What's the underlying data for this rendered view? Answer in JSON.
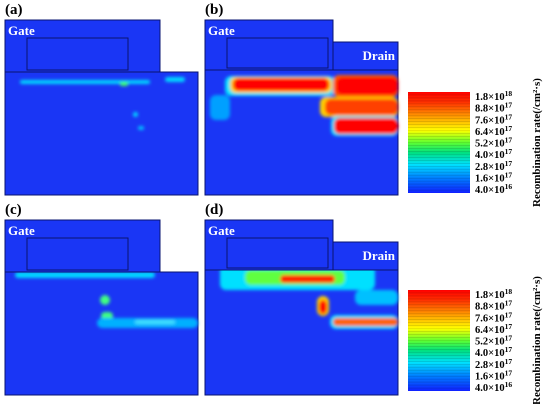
{
  "panels": [
    {
      "label": "(a)",
      "gate": "Gate"
    },
    {
      "label": "(b)",
      "gate": "Gate",
      "drain": "Drain"
    },
    {
      "label": "(c)",
      "gate": "Gate"
    },
    {
      "label": "(d)",
      "gate": "Gate",
      "drain": "Drain"
    }
  ],
  "colorbars": [
    {
      "title": "Recombination rate(/cm²·s)",
      "ticks": [
        {
          "mantissa": "1.8×10",
          "exponent": "18"
        },
        {
          "mantissa": "8.8×10",
          "exponent": "17"
        },
        {
          "mantissa": "7.6×10",
          "exponent": "17"
        },
        {
          "mantissa": "6.4×10",
          "exponent": "17"
        },
        {
          "mantissa": "5.2×10",
          "exponent": "17"
        },
        {
          "mantissa": "4.0×10",
          "exponent": "17"
        },
        {
          "mantissa": "2.8×10",
          "exponent": "17"
        },
        {
          "mantissa": "1.6×10",
          "exponent": "17"
        },
        {
          "mantissa": "4.0×10",
          "exponent": "16"
        }
      ]
    },
    {
      "title": "Recombination rate(/cm²·s)",
      "ticks": [
        {
          "mantissa": "1.8×10",
          "exponent": "18"
        },
        {
          "mantissa": "8.8×10",
          "exponent": "17"
        },
        {
          "mantissa": "7.6×10",
          "exponent": "17"
        },
        {
          "mantissa": "6.4×10",
          "exponent": "17"
        },
        {
          "mantissa": "5.2×10",
          "exponent": "17"
        },
        {
          "mantissa": "4.0×10",
          "exponent": "17"
        },
        {
          "mantissa": "2.8×10",
          "exponent": "17"
        },
        {
          "mantissa": "1.6×10",
          "exponent": "17"
        },
        {
          "mantissa": "4.0×10",
          "exponent": "16"
        }
      ]
    }
  ]
}
